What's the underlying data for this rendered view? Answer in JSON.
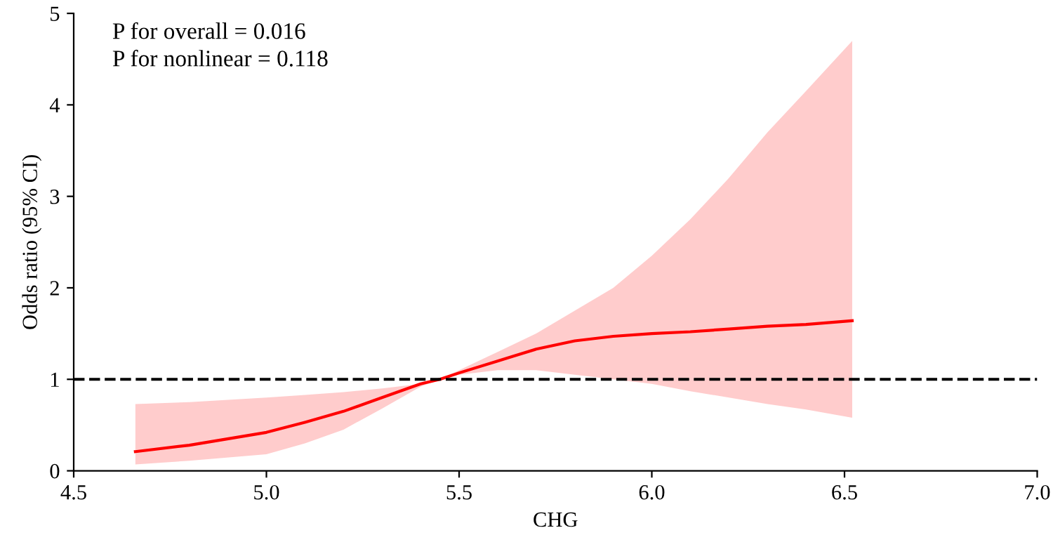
{
  "chart_data": {
    "type": "line",
    "xlabel": "CHG",
    "ylabel": "Odds ratio (95% CI)",
    "annotations": [
      "P for overall = 0.016",
      "P for nonlinear = 0.118"
    ],
    "series": [
      {
        "color": "#ff0000",
        "x": [
          4.66,
          4.8,
          5.0,
          5.1,
          5.2,
          5.3,
          5.4,
          5.45,
          5.5,
          5.6,
          5.7,
          5.8,
          5.9,
          6.0,
          6.1,
          6.2,
          6.3,
          6.4,
          6.52
        ],
        "values": [
          0.21,
          0.28,
          0.42,
          0.53,
          0.65,
          0.8,
          0.95,
          1.0,
          1.07,
          1.2,
          1.33,
          1.42,
          1.47,
          1.5,
          1.52,
          1.55,
          1.58,
          1.6,
          1.64
        ],
        "lower": [
          0.07,
          0.11,
          0.18,
          0.3,
          0.45,
          0.68,
          0.92,
          1.0,
          1.05,
          1.1,
          1.1,
          1.05,
          1.0,
          0.95,
          0.87,
          0.8,
          0.73,
          0.67,
          0.58
        ],
        "upper": [
          0.73,
          0.75,
          0.8,
          0.83,
          0.86,
          0.9,
          0.95,
          1.0,
          1.1,
          1.3,
          1.5,
          1.75,
          2.0,
          2.35,
          2.75,
          3.2,
          3.7,
          4.15,
          4.7
        ]
      }
    ],
    "ref_lines": [
      {
        "axis": "y",
        "value": 1,
        "color": "#000000",
        "line_style": "dashed"
      }
    ],
    "xlim": [
      4.5,
      7.0
    ],
    "xticks": [
      {
        "value": 4.5,
        "label": "4.5"
      },
      {
        "value": 5.0,
        "label": "5.0"
      },
      {
        "value": 5.5,
        "label": "5.5"
      },
      {
        "value": 6.0,
        "label": "6.0"
      },
      {
        "value": 6.5,
        "label": "6.5"
      },
      {
        "value": 7.0,
        "label": "7.0"
      }
    ],
    "ylim": [
      0,
      5
    ],
    "yticks": [
      0,
      1,
      2,
      3,
      4,
      5
    ],
    "grid": false,
    "legend": false,
    "marker": "none",
    "line_style": "solid"
  }
}
